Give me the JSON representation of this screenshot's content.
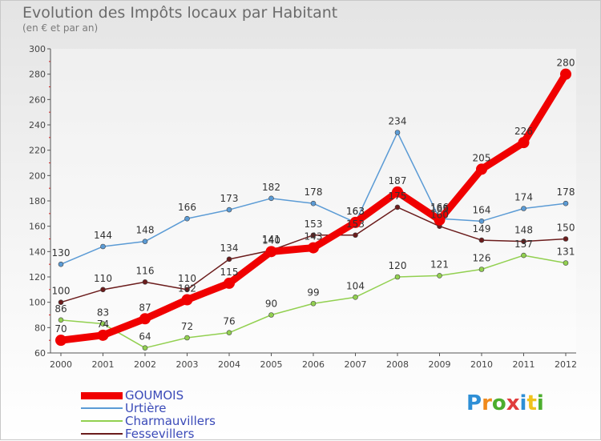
{
  "header": {
    "title": "Evolution des Impôts locaux par Habitant",
    "subtitle": "(en € et par an)"
  },
  "logo": {
    "text": "Proxiti",
    "colors": [
      "#2e8fd6",
      "#f08a1c",
      "#4cae2e",
      "#e03c3c",
      "#2e8fd6",
      "#f0c21c",
      "#4cae2e"
    ]
  },
  "chart_data": {
    "type": "line",
    "title": "Evolution des Impôts locaux par Habitant",
    "ylabel": "(en € et par an)",
    "xlabel": "",
    "ylim": [
      60,
      300
    ],
    "ytick_step": 20,
    "grid": false,
    "legend_position": "bottom-left",
    "categories": [
      "2000",
      "2001",
      "2002",
      "2003",
      "2004",
      "2005",
      "2006",
      "2007",
      "2008",
      "2009",
      "2010",
      "2011",
      "2012"
    ],
    "series": [
      {
        "name": "GOUMOIS",
        "color": "#f00000",
        "emphasis": true,
        "values": [
          70,
          74,
          87,
          102,
          115,
          140,
          143,
          163,
          187,
          165,
          205,
          226,
          280
        ],
        "labels": [
          "70",
          "74",
          "87",
          "102",
          "115",
          "140",
          "143",
          "163",
          "187",
          "165",
          "205",
          "226",
          "280"
        ]
      },
      {
        "name": "Urtière",
        "color": "#5b9bd5",
        "emphasis": false,
        "values": [
          130,
          144,
          148,
          166,
          173,
          182,
          178,
          163,
          234,
          166,
          164,
          174,
          178
        ],
        "labels": [
          "130",
          "144",
          "148",
          "166",
          "173",
          "182",
          "178",
          "163",
          "234",
          "166",
          "164",
          "174",
          "178"
        ]
      },
      {
        "name": "Charmauvillers",
        "color": "#92d050",
        "emphasis": false,
        "values": [
          86,
          83,
          64,
          72,
          76,
          90,
          99,
          104,
          120,
          121,
          126,
          137,
          131
        ],
        "labels": [
          "86",
          "83",
          "64",
          "72",
          "76",
          "90",
          "99",
          "104",
          "120",
          "121",
          "126",
          "137",
          "131"
        ]
      },
      {
        "name": "Fessevillers",
        "color": "#6b1c1c",
        "emphasis": false,
        "values": [
          100,
          110,
          116,
          110,
          134,
          141,
          153,
          153,
          175,
          160,
          149,
          148,
          150
        ],
        "labels": [
          "100",
          "110",
          "116",
          "110",
          "134",
          "141",
          "153",
          "153",
          "175",
          "160",
          "149",
          "148",
          "150"
        ]
      }
    ]
  }
}
